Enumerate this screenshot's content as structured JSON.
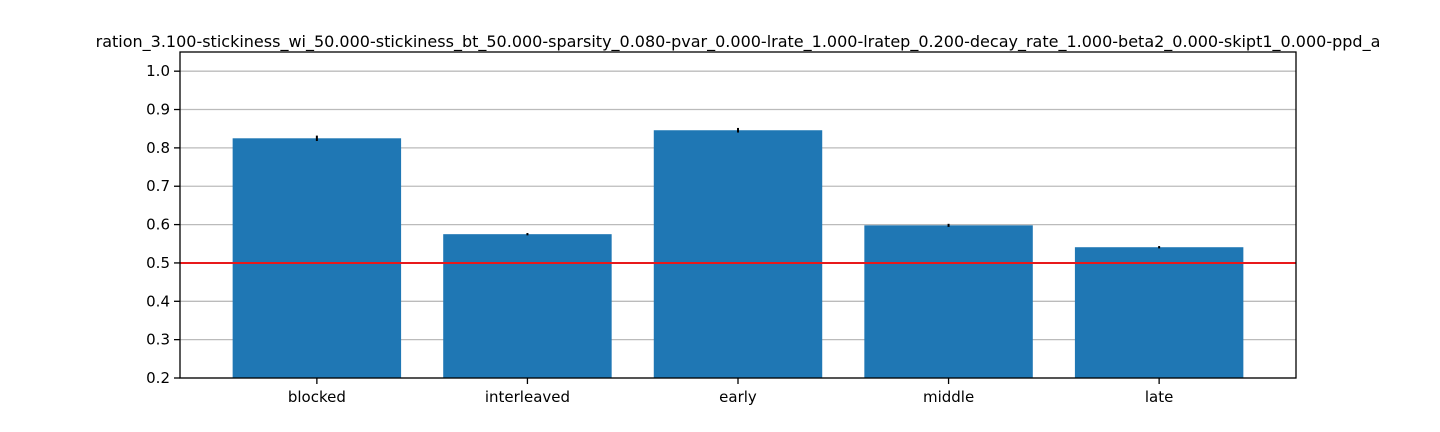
{
  "chart_data": {
    "type": "bar",
    "title": "ration_3.100-stickiness_wi_50.000-stickiness_bt_50.000-sparsity_0.080-pvar_0.000-lrate_1.000-lratep_0.200-decay_rate_1.000-beta2_0.000-skipt1_0.000-ppd_a",
    "xlabel": "",
    "ylabel": "",
    "categories": [
      "blocked",
      "interleaved",
      "early",
      "middle",
      "late"
    ],
    "values": [
      0.825,
      0.575,
      0.846,
      0.598,
      0.541
    ],
    "errors": [
      0.007,
      0.003,
      0.006,
      0.004,
      0.003
    ],
    "ylim": [
      0.2,
      1.05
    ],
    "yticks": [
      0.2,
      0.3,
      0.4,
      0.5,
      0.6,
      0.7,
      0.8,
      0.9,
      1.0
    ],
    "ytick_labels": [
      "0.2",
      "0.3",
      "0.4",
      "0.5",
      "0.6",
      "0.7",
      "0.8",
      "0.9",
      "1.0"
    ],
    "reference_line": {
      "y": 0.5,
      "color": "#e8191b"
    },
    "bar_color": "#1f77b4",
    "error_bar_color": "#000000",
    "grid": {
      "axis": "y",
      "on": true,
      "color": "#bbbbbb"
    }
  }
}
